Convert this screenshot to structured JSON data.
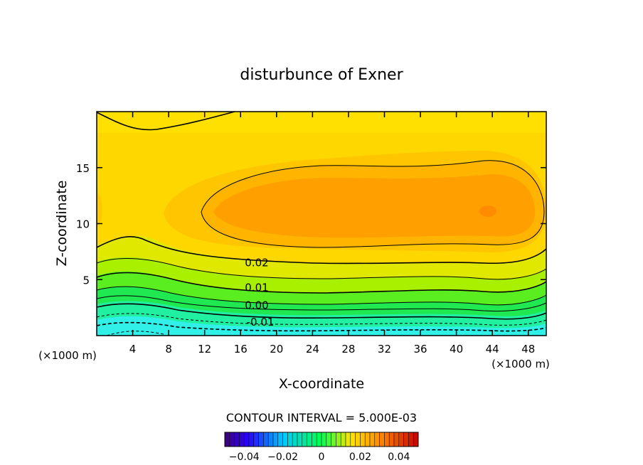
{
  "chart_data": {
    "type": "heatmap",
    "title": "disturbunce of Exner",
    "xlabel": "X-coordinate",
    "ylabel": "Z-coordinate",
    "x_unit": "(×1000 m)",
    "x_unit_right": "(×1000 m)",
    "xlim": [
      0,
      50
    ],
    "ylim": [
      0,
      20
    ],
    "x_ticks": [
      4,
      8,
      12,
      16,
      20,
      24,
      28,
      32,
      36,
      40,
      44,
      48
    ],
    "y_ticks": [
      5,
      10,
      15
    ],
    "contour_interval_text": "CONTOUR INTERVAL = 5.000E-03",
    "contour_labels": [
      {
        "text": "0.02",
        "value": 0.02,
        "x": 17.8,
        "y": 6.5
      },
      {
        "text": "0.01",
        "value": 0.01,
        "x": 17.8,
        "y": 4.3
      },
      {
        "text": "0.00",
        "value": 0.0,
        "x": 17.8,
        "y": 2.7
      },
      {
        "text": "-0.01",
        "value": -0.01,
        "x": 18.2,
        "y": 1.2
      }
    ],
    "field_summary": {
      "maximum_near": {
        "x": 44,
        "z": 11
      },
      "minimum_near": {
        "x": 4,
        "z": 0
      }
    },
    "colorbar": {
      "range": [
        -0.05,
        0.05
      ],
      "tick_labels": [
        "-0.04",
        "-0.02",
        "0",
        "0.02",
        "0.04"
      ],
      "tick_values": [
        -0.04,
        -0.02,
        0,
        0.02,
        0.04
      ]
    },
    "grid": false
  }
}
